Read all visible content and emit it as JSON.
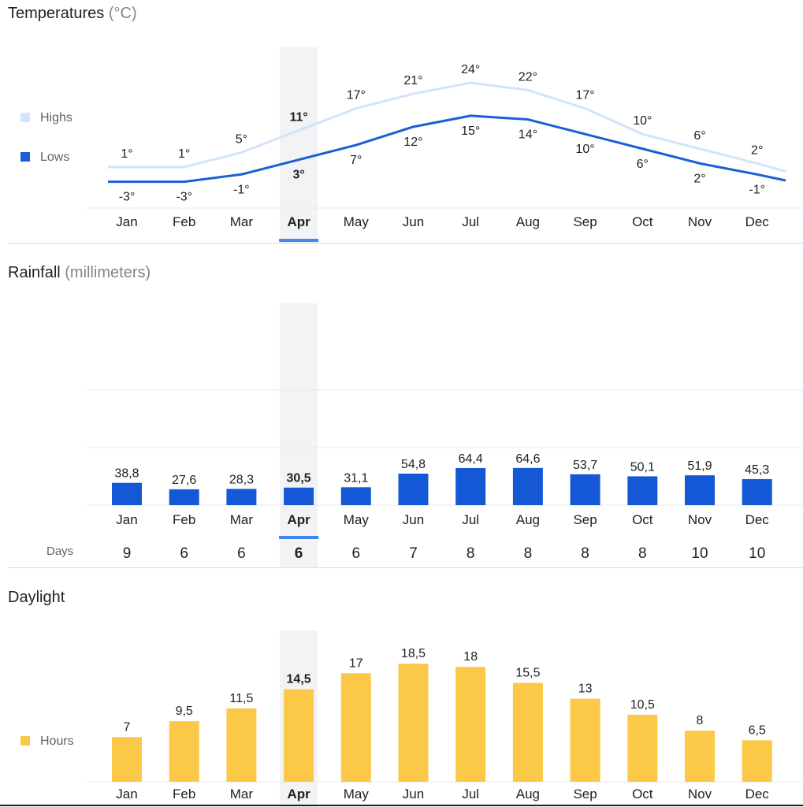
{
  "months": [
    "Jan",
    "Feb",
    "Mar",
    "Apr",
    "May",
    "Jun",
    "Jul",
    "Aug",
    "Sep",
    "Oct",
    "Nov",
    "Dec"
  ],
  "selected_month_index": 3,
  "sections": {
    "temperatures": {
      "title": "Temperatures",
      "unit": "(°C)"
    },
    "rainfall": {
      "title": "Rainfall",
      "unit": "(millimeters)",
      "days_label": "Days"
    },
    "daylight": {
      "title": "Daylight"
    }
  },
  "colors": {
    "highs": "#d2e3fc",
    "lows": "#1a5fd6",
    "rain_bar": "#1558d6",
    "daylight_bar": "#fbc947",
    "selected_band": "#f1f3f4",
    "selected_indicator": "#4285f4",
    "gridline": "#e8eaed",
    "muted_text": "#5f6368"
  },
  "chart_data": [
    {
      "type": "line",
      "title": "Temperatures (°C)",
      "categories": [
        "Jan",
        "Feb",
        "Mar",
        "Apr",
        "May",
        "Jun",
        "Jul",
        "Aug",
        "Sep",
        "Oct",
        "Nov",
        "Dec"
      ],
      "series": [
        {
          "name": "Highs",
          "values": [
            1,
            1,
            5,
            11,
            17,
            21,
            24,
            22,
            17,
            10,
            6,
            2
          ],
          "labels": [
            "1°",
            "1°",
            "5°",
            "11°",
            "17°",
            "21°",
            "24°",
            "22°",
            "17°",
            "10°",
            "6°",
            "2°"
          ]
        },
        {
          "name": "Lows",
          "values": [
            -3,
            -3,
            -1,
            3,
            7,
            12,
            15,
            14,
            10,
            6,
            2,
            -1
          ],
          "labels": [
            "-3°",
            "-3°",
            "-1°",
            "3°",
            "7°",
            "12°",
            "15°",
            "14°",
            "10°",
            "6°",
            "2°",
            "-1°"
          ]
        }
      ],
      "ylim": [
        -5,
        27
      ],
      "legend": "left"
    },
    {
      "type": "bar",
      "title": "Rainfall (millimeters)",
      "categories": [
        "Jan",
        "Feb",
        "Mar",
        "Apr",
        "May",
        "Jun",
        "Jul",
        "Aug",
        "Sep",
        "Oct",
        "Nov",
        "Dec"
      ],
      "values": [
        38.8,
        27.6,
        28.3,
        30.5,
        31.1,
        54.8,
        64.4,
        64.6,
        53.7,
        50.1,
        51.9,
        45.3
      ],
      "labels": [
        "38,8",
        "27,6",
        "28,3",
        "30,5",
        "31,1",
        "54,8",
        "64,4",
        "64,6",
        "53,7",
        "50,1",
        "51,9",
        "45,3"
      ],
      "days": [
        "9",
        "6",
        "6",
        "6",
        "6",
        "7",
        "8",
        "8",
        "8",
        "8",
        "10",
        "10"
      ],
      "ylim": [
        0,
        300
      ],
      "gridlines": [
        100,
        200
      ]
    },
    {
      "type": "bar",
      "title": "Daylight",
      "categories": [
        "Jan",
        "Feb",
        "Mar",
        "Apr",
        "May",
        "Jun",
        "Jul",
        "Aug",
        "Sep",
        "Oct",
        "Nov",
        "Dec"
      ],
      "series": [
        {
          "name": "Hours",
          "values": [
            7,
            9.5,
            11.5,
            14.5,
            17,
            18.5,
            18,
            15.5,
            13,
            10.5,
            8,
            6.5
          ],
          "labels": [
            "7",
            "9,5",
            "11,5",
            "14,5",
            "17",
            "18,5",
            "18",
            "15,5",
            "13",
            "10,5",
            "8",
            "6,5"
          ]
        }
      ],
      "ylim": [
        0,
        18.5
      ],
      "legend": "left"
    }
  ]
}
